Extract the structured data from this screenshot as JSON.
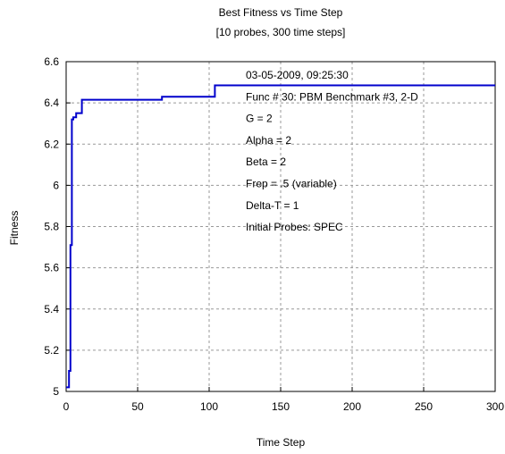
{
  "chart_data": {
    "type": "line",
    "title": "Best Fitness vs Time Step",
    "subtitle": "[10 probes, 300 time steps]",
    "xlabel": "Time Step",
    "ylabel": "Fitness",
    "xlim": [
      0,
      300
    ],
    "ylim": [
      5,
      6.6
    ],
    "xticks": [
      0,
      50,
      100,
      150,
      200,
      250,
      300
    ],
    "yticks": [
      5,
      5.2,
      5.4,
      5.6,
      5.8,
      6,
      6.2,
      6.4,
      6.6
    ],
    "ytick_labels": [
      "5",
      "5.2",
      "5.4",
      "5.6",
      "5.8",
      "6",
      "6.2",
      "6.4",
      "6.6"
    ],
    "grid": true,
    "line_color": "#0000cc",
    "series": [
      {
        "steps": "post",
        "x": [
          0,
          2,
          3,
          4,
          5,
          7,
          11,
          67,
          104,
          300
        ],
        "y": [
          5.02,
          5.1,
          5.71,
          6.32,
          6.33,
          6.35,
          6.415,
          6.43,
          6.485,
          6.485
        ]
      }
    ],
    "annotations": [
      "03-05-2009, 09:25:30",
      "Func # 30:  PBM Benchmark #3,  2-D",
      "G = 2",
      "Alpha = 2",
      "Beta = 2",
      "Frep =  .5 (variable)",
      "Delta-T = 1",
      "Initial Probes:  SPEC"
    ]
  }
}
